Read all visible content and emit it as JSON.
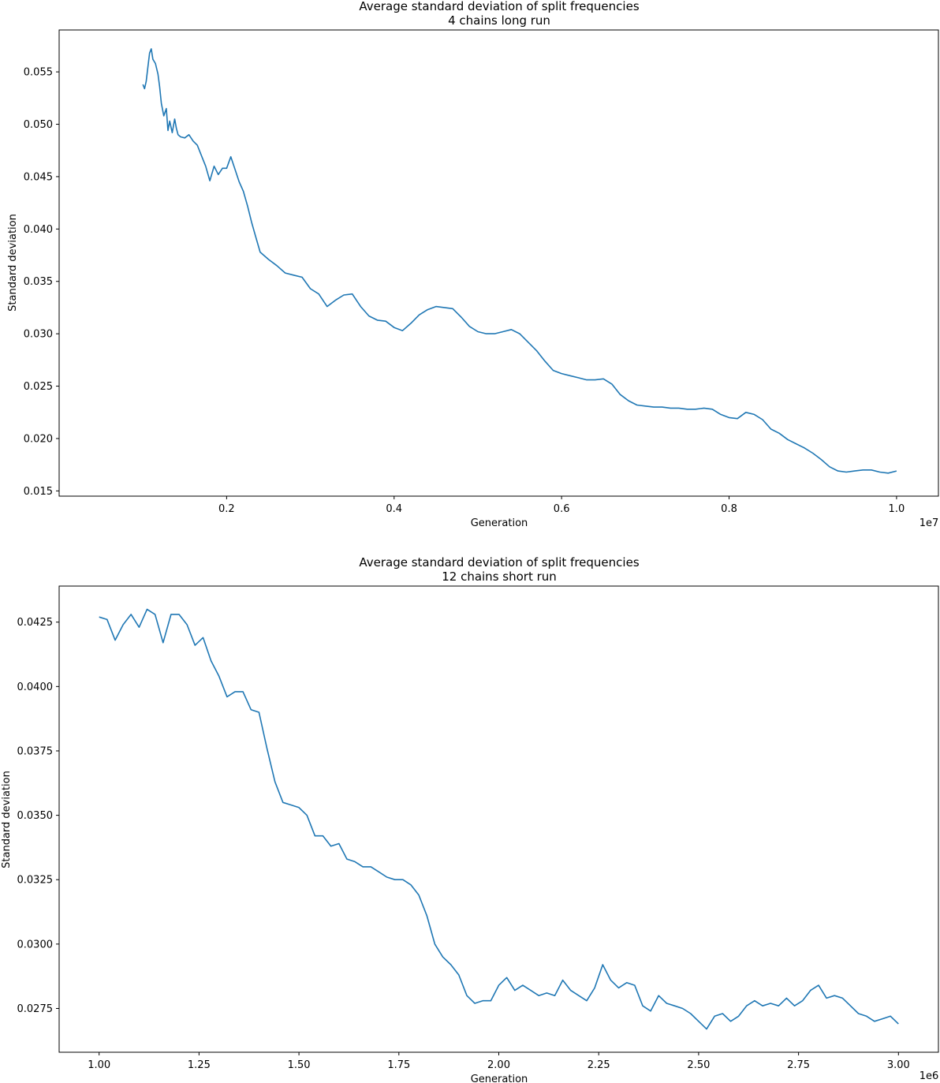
{
  "chart_data": [
    {
      "type": "line",
      "title": "Average standard deviation of split frequencies",
      "subtitle": "4 chains long run",
      "xlabel": "Generation",
      "ylabel": "Standard deviation",
      "x_offset_label": "1e7",
      "xlim": [
        0,
        1.05
      ],
      "ylim": [
        0.0145,
        0.059
      ],
      "xticks": [
        0.2,
        0.4,
        0.6,
        0.8,
        1.0
      ],
      "xtick_labels": [
        "0.2",
        "0.4",
        "0.6",
        "0.8",
        "1.0"
      ],
      "yticks": [
        0.015,
        0.02,
        0.025,
        0.03,
        0.035,
        0.04,
        0.045,
        0.05,
        0.055
      ],
      "ytick_labels": [
        "0.015",
        "0.020",
        "0.025",
        "0.030",
        "0.035",
        "0.040",
        "0.045",
        "0.050",
        "0.055"
      ],
      "series": [
        {
          "color": "#1f77b4",
          "x": [
            0.1,
            0.102,
            0.104,
            0.106,
            0.108,
            0.11,
            0.112,
            0.115,
            0.118,
            0.12,
            0.122,
            0.125,
            0.128,
            0.13,
            0.132,
            0.135,
            0.138,
            0.14,
            0.142,
            0.145,
            0.15,
            0.155,
            0.16,
            0.165,
            0.17,
            0.175,
            0.18,
            0.185,
            0.19,
            0.195,
            0.2,
            0.205,
            0.21,
            0.215,
            0.22,
            0.225,
            0.23,
            0.235,
            0.24,
            0.25,
            0.26,
            0.27,
            0.28,
            0.29,
            0.3,
            0.31,
            0.32,
            0.33,
            0.34,
            0.35,
            0.36,
            0.37,
            0.38,
            0.39,
            0.4,
            0.41,
            0.42,
            0.43,
            0.44,
            0.45,
            0.46,
            0.47,
            0.48,
            0.49,
            0.5,
            0.51,
            0.52,
            0.53,
            0.54,
            0.55,
            0.56,
            0.57,
            0.58,
            0.59,
            0.6,
            0.61,
            0.62,
            0.63,
            0.64,
            0.65,
            0.66,
            0.67,
            0.68,
            0.69,
            0.7,
            0.71,
            0.72,
            0.73,
            0.74,
            0.75,
            0.76,
            0.77,
            0.78,
            0.79,
            0.8,
            0.81,
            0.82,
            0.83,
            0.84,
            0.85,
            0.86,
            0.87,
            0.88,
            0.89,
            0.9,
            0.91,
            0.92,
            0.93,
            0.94,
            0.95,
            0.96,
            0.97,
            0.98,
            0.99,
            1.0
          ],
          "y": [
            0.0538,
            0.0534,
            0.0541,
            0.0555,
            0.0568,
            0.0572,
            0.0562,
            0.0558,
            0.0548,
            0.0536,
            0.052,
            0.0508,
            0.0515,
            0.0494,
            0.0503,
            0.0492,
            0.0505,
            0.0496,
            0.049,
            0.0488,
            0.0487,
            0.049,
            0.0484,
            0.048,
            0.047,
            0.046,
            0.0446,
            0.046,
            0.0452,
            0.0458,
            0.0458,
            0.0469,
            0.0457,
            0.0445,
            0.0436,
            0.0422,
            0.0406,
            0.0392,
            0.0378,
            0.0371,
            0.0365,
            0.0358,
            0.0356,
            0.0354,
            0.0343,
            0.0338,
            0.0326,
            0.0332,
            0.0337,
            0.0338,
            0.0326,
            0.0317,
            0.0313,
            0.0312,
            0.0306,
            0.0303,
            0.031,
            0.0318,
            0.0323,
            0.0326,
            0.0325,
            0.0324,
            0.0316,
            0.0307,
            0.0302,
            0.03,
            0.03,
            0.0302,
            0.0304,
            0.03,
            0.0292,
            0.0284,
            0.0274,
            0.0265,
            0.0262,
            0.026,
            0.0258,
            0.0256,
            0.0256,
            0.0257,
            0.0252,
            0.0242,
            0.0236,
            0.0232,
            0.0231,
            0.023,
            0.023,
            0.0229,
            0.0229,
            0.0228,
            0.0228,
            0.0229,
            0.0228,
            0.0223,
            0.022,
            0.0219,
            0.0225,
            0.0223,
            0.0218,
            0.0209,
            0.0205,
            0.0199,
            0.0195,
            0.0191,
            0.0186,
            0.018,
            0.0173,
            0.0169,
            0.0168,
            0.0169,
            0.017,
            0.017,
            0.0168,
            0.0167,
            0.0169
          ]
        }
      ]
    },
    {
      "type": "line",
      "title": "Average standard deviation of split frequencies",
      "subtitle": "12 chains short run",
      "xlabel": "Generation",
      "ylabel": "Standard deviation",
      "x_offset_label": "1e6",
      "xlim": [
        0.9,
        3.1
      ],
      "ylim": [
        0.0258,
        0.0439
      ],
      "xticks": [
        1.0,
        1.25,
        1.5,
        1.75,
        2.0,
        2.25,
        2.5,
        2.75,
        3.0
      ],
      "xtick_labels": [
        "1.00",
        "1.25",
        "1.50",
        "1.75",
        "2.00",
        "2.25",
        "2.50",
        "2.75",
        "3.00"
      ],
      "yticks": [
        0.0275,
        0.03,
        0.0325,
        0.035,
        0.0375,
        0.04,
        0.0425
      ],
      "ytick_labels": [
        "0.0275",
        "0.0300",
        "0.0325",
        "0.0350",
        "0.0375",
        "0.0400",
        "0.0425"
      ],
      "series": [
        {
          "color": "#1f77b4",
          "x": [
            1.0,
            1.02,
            1.04,
            1.06,
            1.08,
            1.1,
            1.12,
            1.14,
            1.16,
            1.18,
            1.2,
            1.22,
            1.24,
            1.26,
            1.28,
            1.3,
            1.32,
            1.34,
            1.36,
            1.38,
            1.4,
            1.42,
            1.44,
            1.46,
            1.48,
            1.5,
            1.52,
            1.54,
            1.56,
            1.58,
            1.6,
            1.62,
            1.64,
            1.66,
            1.68,
            1.7,
            1.72,
            1.74,
            1.76,
            1.78,
            1.8,
            1.82,
            1.84,
            1.86,
            1.88,
            1.9,
            1.92,
            1.94,
            1.96,
            1.98,
            2.0,
            2.02,
            2.04,
            2.06,
            2.08,
            2.1,
            2.12,
            2.14,
            2.16,
            2.18,
            2.2,
            2.22,
            2.24,
            2.26,
            2.28,
            2.3,
            2.32,
            2.34,
            2.36,
            2.38,
            2.4,
            2.42,
            2.44,
            2.46,
            2.48,
            2.5,
            2.52,
            2.54,
            2.56,
            2.58,
            2.6,
            2.62,
            2.64,
            2.66,
            2.68,
            2.7,
            2.72,
            2.74,
            2.76,
            2.78,
            2.8,
            2.82,
            2.84,
            2.86,
            2.88,
            2.9,
            2.92,
            2.94,
            2.96,
            2.98,
            3.0
          ],
          "y": [
            0.0427,
            0.0426,
            0.0418,
            0.0424,
            0.0428,
            0.0423,
            0.043,
            0.0428,
            0.0417,
            0.0428,
            0.0428,
            0.0424,
            0.0416,
            0.0419,
            0.041,
            0.0404,
            0.0396,
            0.0398,
            0.0398,
            0.0391,
            0.039,
            0.0376,
            0.0363,
            0.0355,
            0.0354,
            0.0353,
            0.035,
            0.0342,
            0.0342,
            0.0338,
            0.0339,
            0.0333,
            0.0332,
            0.033,
            0.033,
            0.0328,
            0.0326,
            0.0325,
            0.0325,
            0.0323,
            0.0319,
            0.0311,
            0.03,
            0.0295,
            0.0292,
            0.0288,
            0.028,
            0.0277,
            0.0278,
            0.0278,
            0.0284,
            0.0287,
            0.0282,
            0.0284,
            0.0282,
            0.028,
            0.0281,
            0.028,
            0.0286,
            0.0282,
            0.028,
            0.0278,
            0.0283,
            0.0292,
            0.0286,
            0.0283,
            0.0285,
            0.0284,
            0.0276,
            0.0274,
            0.028,
            0.0277,
            0.0276,
            0.0275,
            0.0273,
            0.027,
            0.0267,
            0.0272,
            0.0273,
            0.027,
            0.0272,
            0.0276,
            0.0278,
            0.0276,
            0.0277,
            0.0276,
            0.0279,
            0.0276,
            0.0278,
            0.0282,
            0.0284,
            0.0279,
            0.028,
            0.0279,
            0.0276,
            0.0273,
            0.0272,
            0.027,
            0.0271,
            0.0272,
            0.0269
          ]
        }
      ]
    }
  ]
}
